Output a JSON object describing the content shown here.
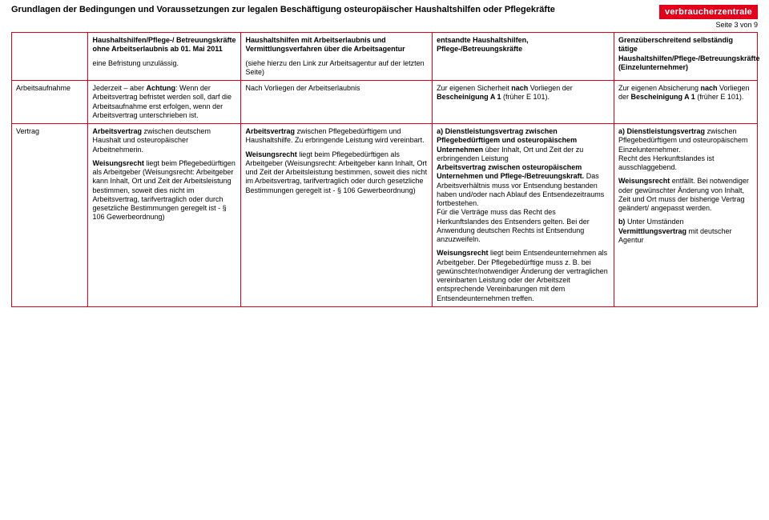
{
  "header": {
    "title": "Grundlagen der Bedingungen und Voraussetzungen zur legalen Beschäftigung osteuropäischer Haushaltshilfen oder Pflegekräfte",
    "logo": "verbraucherzentrale",
    "page": "Seite 3 von 9"
  },
  "top_row": {
    "c1_h": "Haushaltshilfen/Pflege-/ Betreuungskräfte ohne Arbeitserlaubnis ab 01. Mai 2011",
    "c1_p": "eine Befristung unzulässig.",
    "c2_h": "Haushaltshilfen mit Arbeitserlaubnis und Vermittlungsverfahren über die Arbeitsagentur",
    "c2_p": "(siehe hierzu den Link zur Arbeitsagentur auf der letzten Seite)",
    "c3_h": "entsandte Haushaltshilfen, Pflege-/Betreuungskräfte",
    "c4_h": "Grenzüberschreitend selbständig tätige Haushaltshilfen/Pflege-/Betreuungskräfte (Einzelunternehmer)"
  },
  "row_aufnahme": {
    "label": "Arbeitsaufnahme",
    "c1a": "Jederzeit – aber ",
    "c1b": "Achtung",
    "c1c": ": Wenn der Arbeitsvertrag befristet werden soll, darf die Arbeitsaufnahme erst erfolgen, wenn der Arbeitsvertrag unterschrieben ist.",
    "c2": "Nach Vorliegen der Arbeitserlaubnis",
    "c3a": "Zur eigenen Sicherheit ",
    "c3b": "nach ",
    "c3c": "Vorliegen der ",
    "c3d": "Bescheinigung A 1",
    "c3e": " (früher E 101).",
    "c4a": "Zur eigenen Absicherung ",
    "c4b": "nach ",
    "c4c": "Vorliegen der ",
    "c4d": "Bescheinigung A 1",
    "c4e": " (früher E 101)."
  },
  "row_vertrag": {
    "label": "Vertrag",
    "c1p1a": "Arbeitsvertrag",
    "c1p1b": " zwischen deutschem Haushalt und osteuropäischer Arbeitnehmerin.",
    "c1p2a": "Weisungsrecht",
    "c1p2b": " liegt beim Pflegebedürftigen als Arbeitgeber (Weisungsrecht: Arbeitgeber kann Inhalt, Ort und Zeit der Arbeitsleistung bestimmen, soweit dies nicht im Arbeitsvertrag, tarifvertraglich oder durch gesetzliche Bestimmungen geregelt ist - § 106 Gewerbeordnung)",
    "c2p1a": "Arbeitsvertrag",
    "c2p1b": " zwischen Pflegebedürftigem und Haushaltshilfe. Zu erbringende Leistung wird vereinbart.",
    "c2p2a": "Weisungsrecht",
    "c2p2b": " liegt beim Pflegebedürftigen als Arbeitgeber (Weisungsrecht: Arbeitgeber kann Inhalt, Ort und Zeit der Arbeitsleistung bestimmen, soweit dies nicht im Arbeitsvertrag, tarifvertraglich oder durch gesetzliche Bestimmungen geregelt ist - § 106 Gewerbeordnung)",
    "c3p1a": "a) Dienstleistungsvertrag zwischen Pflegebedürftigem und osteuropäischem Unternehmen",
    "c3p1b": " über Inhalt, Ort und Zeit der zu erbringenden Leistung",
    "c3p1c": "Arbeitsvertrag zwischen osteuropäischem Unternehmen und Pflege-/Betreuungskraft.",
    "c3p1d": " Das Arbeitsverhältnis muss vor Entsendung bestanden haben und/oder nach Ablauf des Entsendezeitraums fortbestehen.",
    "c3p1e": "Für die Verträge muss das Recht des Herkunftslandes des Entsenders gelten. Bei der Anwendung deutschen Rechts ist Entsendung anzuzweifeln.",
    "c3p2a": "Weisungsrecht",
    "c3p2b": " liegt beim Entsendeunternehmen als Arbeitgeber. Der Pflegebedürftige muss z. B. bei gewünschter/notwendiger Änderung der vertraglichen vereinbarten Leistung oder der Arbeitszeit entsprechende Vereinbarungen mit dem Entsendeunternehmen treffen.",
    "c4p1a": "a) Dienstleistungsvertrag",
    "c4p1b": " zwischen Pflegebedürftigem und osteuropäischem Einzelunternehmer.",
    "c4p1c": "Recht des Herkunftslandes ist ausschlaggebend.",
    "c4p2a": "Weisungsrecht",
    "c4p2b": " entfällt. Bei notwendiger oder gewünschter Änderung von Inhalt, Zeit und Ort muss der bisherige Vertrag geändert/ angepasst werden.",
    "c4p3a": "b) ",
    "c4p3b": "Unter Umständen ",
    "c4p3c": "Vermittlungsvertrag",
    "c4p3d": " mit deutscher Agentur"
  }
}
